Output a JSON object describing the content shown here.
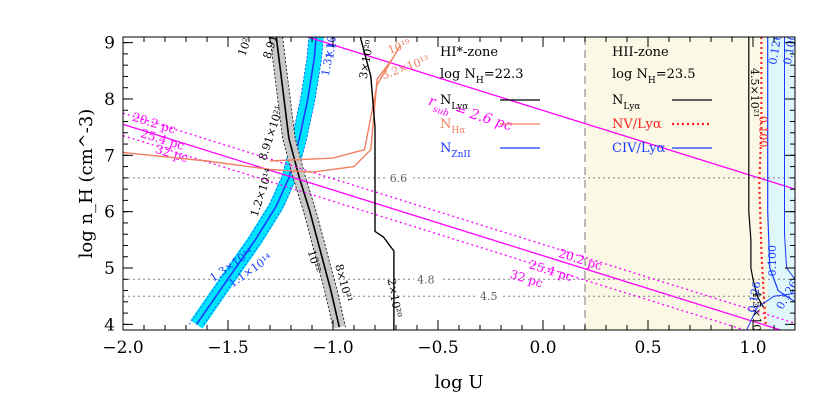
{
  "chart_data": {
    "type": "line",
    "title": "",
    "xlabel": "log U",
    "ylabel": "log n_H (cm^-3)",
    "xlim": [
      -2.0,
      1.2
    ],
    "ylim": [
      3.9,
      9.1
    ],
    "xticks": [
      -2.0,
      -1.5,
      -1.0,
      -0.5,
      0.0,
      0.5,
      1.0
    ],
    "xtick_labels": [
      "−2.0",
      "−1.5",
      "−1.0",
      "−0.5",
      "0.0",
      "0.5",
      "1.0"
    ],
    "yticks": [
      4,
      5,
      6,
      7,
      8,
      9
    ],
    "ytick_labels": [
      "4",
      "5",
      "6",
      "7",
      "8",
      "9"
    ],
    "colors": {
      "magenta": "#ff00ff",
      "cyan": "#00e5ff",
      "salmon": "#f08060",
      "blue": "#1a3cff",
      "red": "#ff2020",
      "grey": "#808080",
      "black": "#000000"
    },
    "regions": [
      {
        "name": "HII-zone shading",
        "x": [
          0.2,
          1.2
        ],
        "color": "#fbf8e6"
      },
      {
        "name": "CIV band",
        "x": [
          1.07,
          1.2
        ],
        "color": "#dff7fb"
      }
    ],
    "zone_divider_x": 0.2,
    "hlines": [
      {
        "y": 6.6,
        "label": "6.6",
        "label_x": -0.73
      },
      {
        "y": 4.8,
        "label": "4.8",
        "label_x": -0.6
      },
      {
        "y": 4.5,
        "label": "4.5",
        "label_x": -0.3
      }
    ],
    "legend_hi": {
      "title": "HI*-zone",
      "lognh": "log N",
      "lognh_sub": "H",
      "lognh_val": "=22.3",
      "items": [
        {
          "label": "N",
          "sub": "Lyα",
          "color": "#000000",
          "style": "solid"
        },
        {
          "label": "N",
          "sub": "Hα",
          "color": "#f08060",
          "style": "solid"
        },
        {
          "label": "N",
          "sub": "ZnII",
          "color": "#1a3cff",
          "style": "solid"
        }
      ]
    },
    "legend_hii": {
      "title": "HII-zone",
      "lognh": "log N",
      "lognh_sub": "H",
      "lognh_val": "=23.5",
      "items": [
        {
          "label": "N",
          "sub": "Lyα",
          "color": "#000000",
          "style": "solid"
        },
        {
          "label": "NV/Lyα",
          "sub": "",
          "color": "#ff2020",
          "style": "dotted"
        },
        {
          "label": "CIV/Lyα",
          "sub": "",
          "color": "#1a3cff",
          "style": "solid"
        }
      ]
    },
    "rsub_label": "r",
    "rsub_sub": "sub",
    "rsub_val": " = 2.6 pc",
    "distance_lines": [
      {
        "label": "20.2 pc",
        "x": [
          -2.0,
          1.2
        ],
        "y": [
          7.75,
          4.02
        ],
        "style": "dotted"
      },
      {
        "label": "25.4 pc",
        "x": [
          -2.0,
          1.2
        ],
        "y": [
          7.55,
          3.82
        ],
        "style": "solid"
      },
      {
        "label": "32 pc",
        "x": [
          -2.0,
          1.2
        ],
        "y": [
          7.35,
          3.62
        ],
        "style": "dotted"
      },
      {
        "label": "2.6 pc",
        "x": [
          -1.12,
          1.2
        ],
        "y": [
          9.1,
          6.4
        ],
        "style": "solid"
      }
    ],
    "series": [
      {
        "name": "N_ZnII 1.3e14 band",
        "color": "#1a3cff",
        "band": "#00e5ff",
        "width": 0.035,
        "x": [
          -1.65,
          -1.52,
          -1.37,
          -1.27,
          -1.21,
          -1.16,
          -1.12,
          -1.09,
          -1.08
        ],
        "y": [
          4.0,
          4.7,
          5.5,
          6.1,
          6.6,
          7.3,
          8.0,
          8.7,
          9.1
        ],
        "label": "1.3×10¹⁴"
      },
      {
        "name": "N_Lya 8.91e21 band",
        "color": "#000000",
        "band": "#c8c8c8",
        "width": 0.03,
        "x": [
          -1.27,
          -1.24,
          -1.21,
          -1.16,
          -1.11,
          -1.06,
          -1.01,
          -0.97
        ],
        "y": [
          9.1,
          8.2,
          7.3,
          6.6,
          6.0,
          5.3,
          4.6,
          3.95
        ],
        "label": "8.91×10²¹"
      },
      {
        "name": "N_Ha 3.2e13",
        "color": "#f08060",
        "x": [
          -2.0,
          -1.6,
          -1.3,
          -1.1,
          -0.9,
          -0.82,
          -0.79,
          -0.72
        ],
        "y": [
          7.05,
          6.9,
          6.75,
          6.7,
          6.8,
          7.1,
          8.35,
          8.7
        ],
        "label": "3.2×10¹³"
      },
      {
        "name": "N_Ha 10^19",
        "color": "#f08060",
        "x": [
          -1.3,
          -1.0,
          -0.85,
          -0.79,
          -0.68
        ],
        "y": [
          6.9,
          6.95,
          7.1,
          8.25,
          8.95
        ],
        "label": "10¹⁹"
      },
      {
        "name": "N_Lya 2e20",
        "color": "#000000",
        "x": [
          -0.87,
          -0.82,
          -0.8,
          -0.8,
          -0.76,
          -0.71,
          -0.71
        ],
        "y": [
          9.1,
          8.4,
          7.5,
          5.65,
          5.55,
          5.3,
          3.9
        ],
        "label": "2×10²⁰"
      }
    ],
    "band_labels": [
      {
        "text": "10²²",
        "x": -1.42,
        "y": 8.75,
        "rot": -70,
        "color": "#000000"
      },
      {
        "text": "8.91×10²¹",
        "x": -1.3,
        "y": 8.7,
        "rot": -72,
        "color": "#000000"
      },
      {
        "text": "1.3×10¹⁴",
        "x": -1.02,
        "y": 8.4,
        "rot": -80,
        "color": "#1a3cff"
      },
      {
        "text": "1.1×10¹⁴",
        "x": -1.0,
        "y": 8.7,
        "rot": -80,
        "color": "#1a3cff"
      },
      {
        "text": "8.91×10²¹",
        "x": -1.32,
        "y": 6.9,
        "rot": -72,
        "color": "#000000"
      },
      {
        "text": "1.2×10¹⁴",
        "x": -1.36,
        "y": 5.9,
        "rot": -72,
        "color": "#000000"
      },
      {
        "text": "1.3×10¹⁴",
        "x": -1.57,
        "y": 4.75,
        "rot": -35,
        "color": "#1a3cff"
      },
      {
        "text": "1.1×10¹⁴",
        "x": -1.48,
        "y": 4.65,
        "rot": -35,
        "color": "#1a3cff"
      },
      {
        "text": "10²²",
        "x": -1.12,
        "y": 5.3,
        "rot": 75,
        "color": "#000000"
      },
      {
        "text": "8×10²¹",
        "x": -0.99,
        "y": 5.05,
        "rot": 75,
        "color": "#000000"
      },
      {
        "text": "2×10²⁰",
        "x": -0.74,
        "y": 4.8,
        "rot": 80,
        "color": "#000000"
      },
      {
        "text": "3.2×10¹³",
        "x": -0.76,
        "y": 8.35,
        "rot": -20,
        "color": "#f08060"
      },
      {
        "text": "10¹⁹",
        "x": -0.73,
        "y": 8.8,
        "rot": -20,
        "color": "#f08060"
      },
      {
        "text": "3×10²⁰",
        "x": -0.84,
        "y": 8.35,
        "rot": -80,
        "color": "#000000"
      },
      {
        "text": "4.5×10²¹",
        "x": 1.0,
        "y": 4.6,
        "rot": 90,
        "color": "#000000"
      },
      {
        "text": "4.5×10²¹",
        "x": 0.99,
        "y": 8.55,
        "rot": 90,
        "color": "#000000"
      },
      {
        "text": "0.100",
        "x": 1.03,
        "y": 7.7,
        "rot": 90,
        "color": "#ff2020"
      },
      {
        "text": "0.126",
        "x": 1.11,
        "y": 8.6,
        "rot": -80,
        "color": "#1a3cff"
      },
      {
        "text": "0.100",
        "x": 1.18,
        "y": 8.6,
        "rot": -80,
        "color": "#1a3cff"
      },
      {
        "text": "0.100",
        "x": 1.11,
        "y": 4.85,
        "rot": -90,
        "color": "#1a3cff"
      },
      {
        "text": "0.126",
        "x": 1.01,
        "y": 4.2,
        "rot": -80,
        "color": "#1a3cff"
      },
      {
        "text": "0.126",
        "x": 1.14,
        "y": 4.25,
        "rot": -60,
        "color": "#1a3cff"
      }
    ]
  }
}
